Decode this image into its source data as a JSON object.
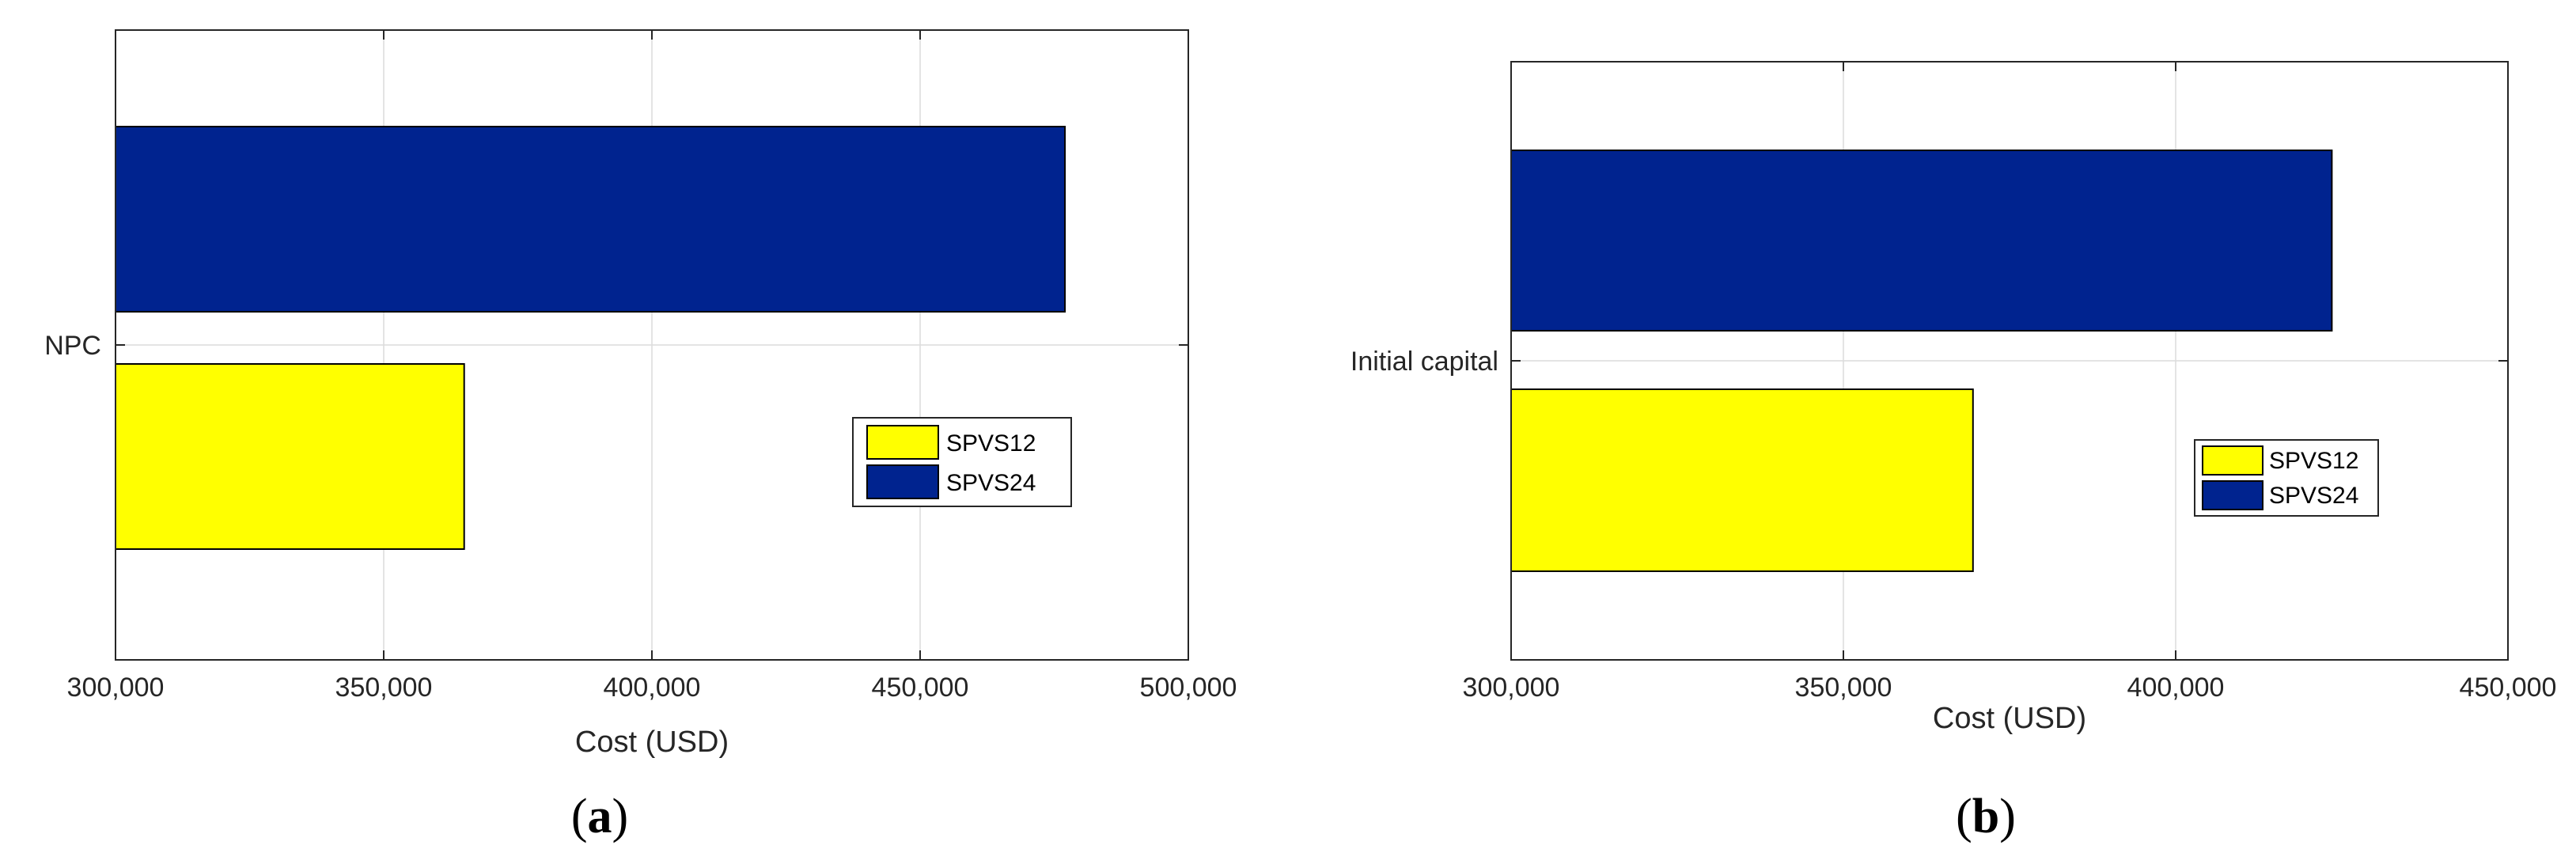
{
  "chart_data": [
    {
      "type": "bar",
      "orientation": "horizontal",
      "panel_label": "a",
      "categories": [
        "NPC"
      ],
      "series": [
        {
          "name": "SPVS12",
          "values": [
            365000
          ],
          "color": "#ffff00"
        },
        {
          "name": "SPVS24",
          "values": [
            477000
          ],
          "color": "#00238f"
        }
      ],
      "xlabel": "Cost (USD)",
      "xlim": [
        300000,
        500000
      ],
      "xticks": [
        "300,000",
        "350,000",
        "400,000",
        "450,000",
        "500,000"
      ],
      "grid": true,
      "legend_position": "right"
    },
    {
      "type": "bar",
      "orientation": "horizontal",
      "panel_label": "b",
      "categories": [
        "Initial capital"
      ],
      "series": [
        {
          "name": "SPVS12",
          "values": [
            369500
          ],
          "color": "#ffff00"
        },
        {
          "name": "SPVS24",
          "values": [
            423500
          ],
          "color": "#00238f"
        }
      ],
      "xlabel": "Cost (USD)",
      "xlim": [
        300000,
        450000
      ],
      "xticks": [
        "300,000",
        "350,000",
        "400,000",
        "450,000"
      ],
      "grid": true,
      "legend_position": "right"
    }
  ]
}
